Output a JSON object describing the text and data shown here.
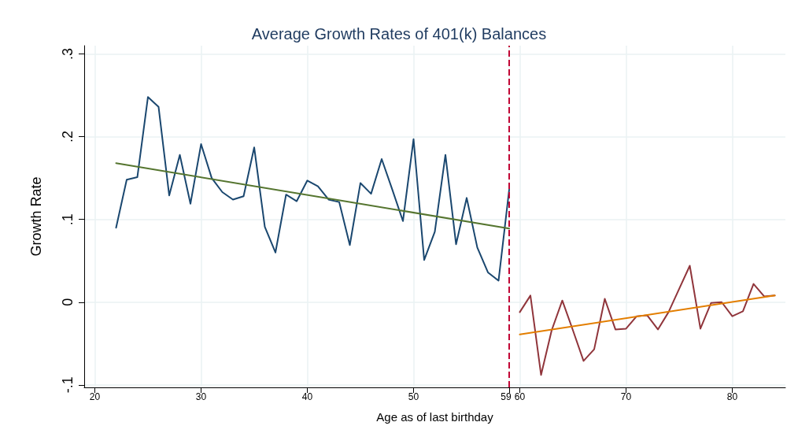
{
  "chart_data": {
    "type": "line",
    "title": "Average Growth Rates of 401(k) Balances",
    "xlabel": "Age as of last birthday",
    "ylabel": "Growth Rate",
    "series": [
      {
        "color": "#1a476f",
        "x": [
          22,
          23,
          24,
          25,
          26,
          27,
          28,
          29,
          30,
          31,
          32,
          33,
          34,
          35,
          36,
          37,
          38,
          39,
          40,
          41,
          42,
          43,
          44,
          45,
          46,
          47,
          48,
          49,
          50,
          51,
          52,
          53,
          54,
          55,
          56,
          57,
          58,
          59
        ],
        "values": [
          0.09,
          0.148,
          0.151,
          0.248,
          0.236,
          0.129,
          0.178,
          0.119,
          0.191,
          0.15,
          0.133,
          0.124,
          0.128,
          0.187,
          0.091,
          0.06,
          0.13,
          0.122,
          0.147,
          0.14,
          0.124,
          0.121,
          0.069,
          0.144,
          0.131,
          0.173,
          0.136,
          0.098,
          0.197,
          0.051,
          0.085,
          0.178,
          0.07,
          0.126,
          0.066,
          0.036,
          0.026,
          0.136
        ]
      },
      {
        "color": "#55752f",
        "x": [
          22,
          59
        ],
        "values": [
          0.168,
          0.089
        ]
      },
      {
        "color": "#90353b",
        "x": [
          60,
          61,
          62,
          63,
          64,
          65,
          66,
          67,
          68,
          69,
          70,
          71,
          72,
          73,
          74,
          75,
          76,
          77,
          78,
          79,
          80,
          81,
          82,
          83,
          84
        ],
        "values": [
          -0.012,
          0.008,
          -0.088,
          -0.034,
          0.002,
          -0.034,
          -0.071,
          -0.057,
          0.004,
          -0.033,
          -0.032,
          -0.017,
          -0.016,
          -0.033,
          -0.012,
          0.016,
          0.044,
          -0.032,
          -0.001,
          0.0,
          -0.017,
          -0.011,
          0.022,
          0.007,
          0.008
        ]
      },
      {
        "color": "#e37e00",
        "x": [
          60,
          84
        ],
        "values": [
          -0.039,
          0.008
        ]
      }
    ],
    "ref_lines": [
      {
        "axis": "x",
        "value": 59,
        "color": "#c10534",
        "line_style": "dashed"
      }
    ],
    "xlim": [
      19,
      85
    ],
    "xticks": [
      20,
      30,
      40,
      50,
      {
        "value": 59,
        "label": "59"
      },
      60,
      70,
      80
    ],
    "ylim": [
      -0.103,
      0.31
    ],
    "yticks": [
      {
        "value": -0.1,
        "label": "-.1"
      },
      0,
      {
        "value": 0.1,
        "label": ".1"
      },
      {
        "value": 0.2,
        "label": ".2"
      },
      {
        "value": 0.3,
        "label": ".3"
      }
    ],
    "grid": true,
    "marker": "none",
    "line_style": "solid"
  }
}
